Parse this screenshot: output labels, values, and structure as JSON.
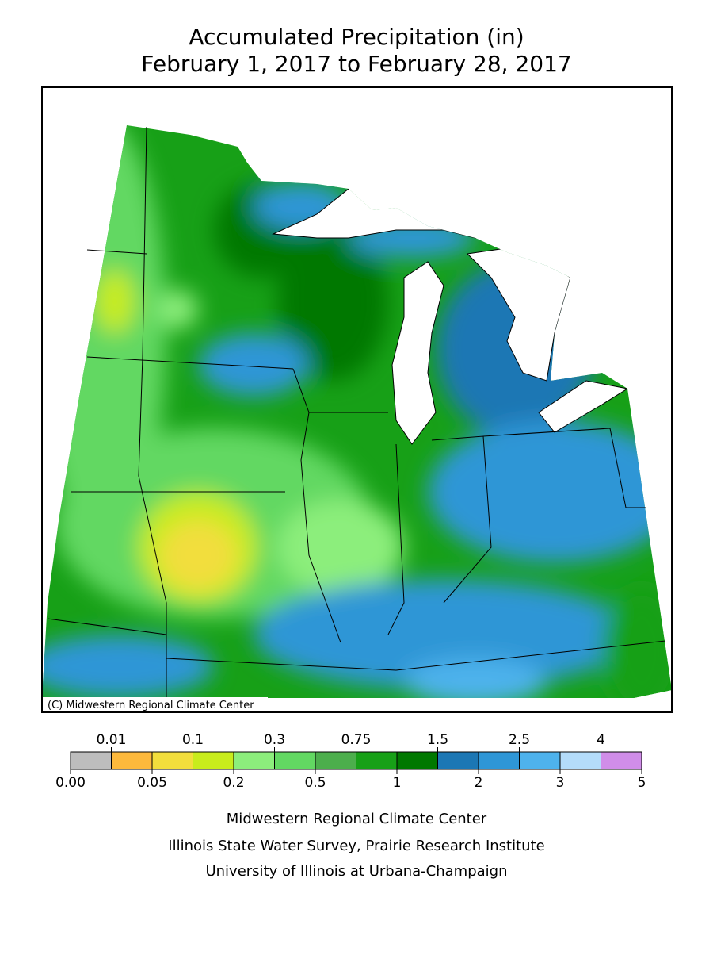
{
  "title": [
    "Accumulated Precipitation (in)",
    "February 1, 2017 to February 28, 2017"
  ],
  "map_credit": "(C) Midwestern Regional Climate Center",
  "legend": {
    "colors": [
      "#bdbdbd",
      "#fdb93c",
      "#f2de3c",
      "#c8ec1c",
      "#8cee7c",
      "#62d862",
      "#4cae4c",
      "#17a017",
      "#007800",
      "#1c77b4",
      "#2e96d6",
      "#4eb2ec",
      "#b4dcfa",
      "#d08de8"
    ],
    "boundaries": [
      {
        "value": 0,
        "label": "0.00"
      },
      0.01,
      0.05,
      0.1,
      0.2,
      0.3,
      0.5,
      0.75,
      1,
      1.5,
      2,
      2.5,
      3,
      4,
      5
    ]
  },
  "footer": [
    "Midwestern Regional Climate Center",
    "Illinois State Water Survey, Prairie Research Institute",
    "University of Illinois at Urbana-Champaign"
  ]
}
